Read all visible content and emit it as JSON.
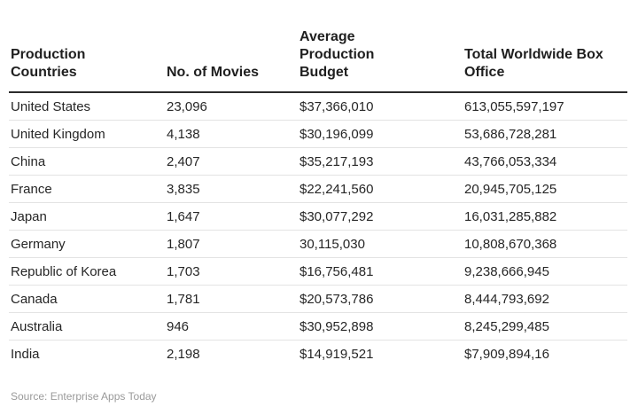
{
  "table": {
    "headers": [
      "Production\nCountries",
      "No. of Movies",
      "Average\nProduction\nBudget",
      "Total Worldwide Box\nOffice"
    ],
    "rows": [
      [
        "United States",
        "23,096",
        "$37,366,010",
        "613,055,597,197"
      ],
      [
        "United Kingdom",
        "4,138",
        "$30,196,099",
        "53,686,728,281"
      ],
      [
        "China",
        "2,407",
        "$35,217,193",
        "43,766,053,334"
      ],
      [
        "France",
        "3,835",
        "$22,241,560",
        "20,945,705,125"
      ],
      [
        "Japan",
        "1,647",
        "$30,077,292",
        "16,031,285,882"
      ],
      [
        "Germany",
        "1,807",
        "30,115,030",
        "10,808,670,368"
      ],
      [
        "Republic of Korea",
        "1,703",
        "$16,756,481",
        "9,238,666,945"
      ],
      [
        "Canada",
        "1,781",
        "$20,573,786",
        "8,444,793,692"
      ],
      [
        "Australia",
        "946",
        "$30,952,898",
        "8,245,299,485"
      ],
      [
        "India",
        "2,198",
        "$14,919,521",
        "$7,909,894,16"
      ]
    ]
  },
  "source": "Source: Enterprise Apps Today"
}
